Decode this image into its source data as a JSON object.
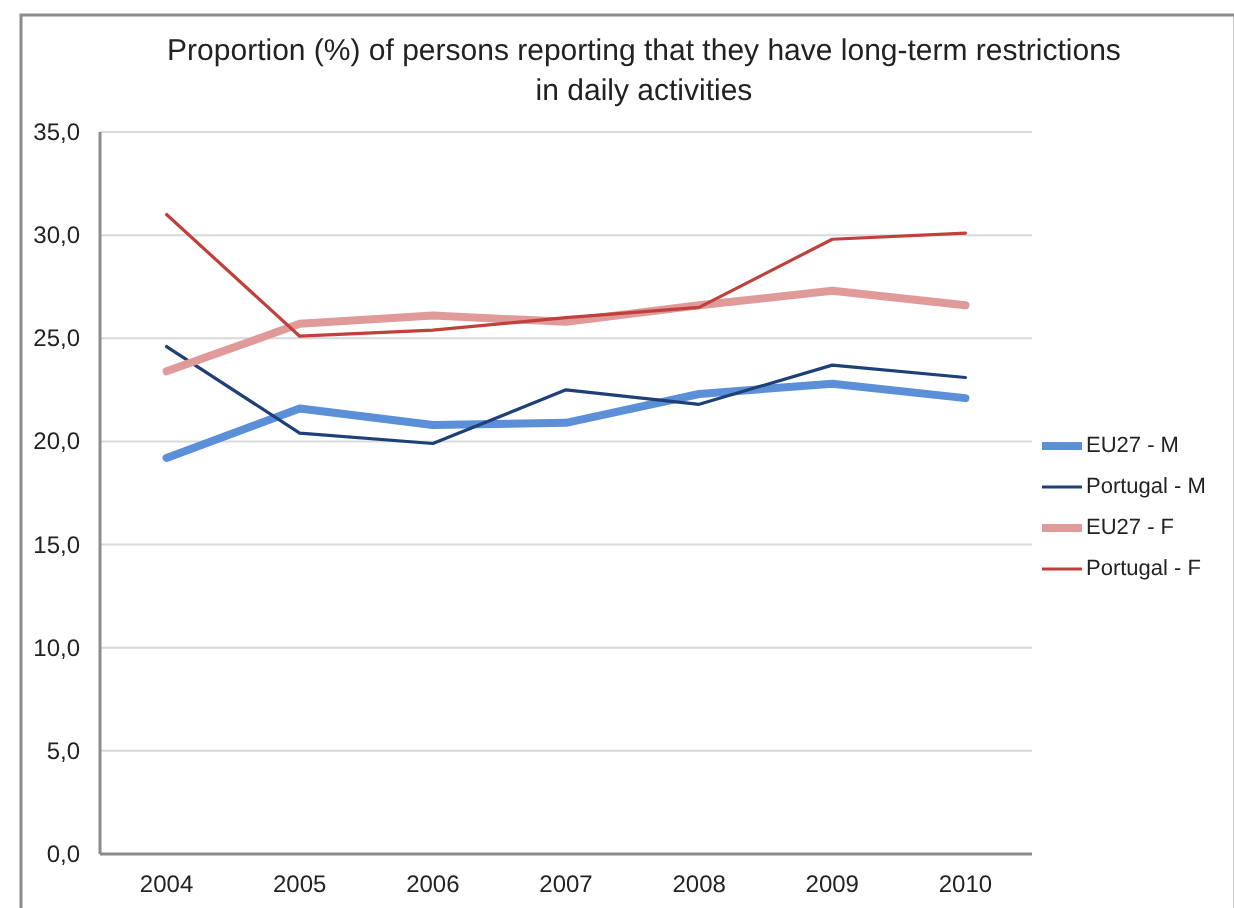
{
  "chart_data": {
    "type": "line",
    "title": "Proportion (%) of persons reporting that they have long-term restrictions\nin daily activities",
    "categories": [
      "2004",
      "2005",
      "2006",
      "2007",
      "2008",
      "2009",
      "2010"
    ],
    "series": [
      {
        "name": "EU27 - M",
        "color": "#5b8fd8",
        "values": [
          19.2,
          21.6,
          20.8,
          20.9,
          22.3,
          22.8,
          22.1
        ]
      },
      {
        "name": "Portugal - M",
        "color": "#1f3f78",
        "values": [
          24.6,
          20.4,
          19.9,
          22.5,
          21.8,
          23.7,
          23.1
        ]
      },
      {
        "name": "EU27 - F",
        "color": "#e09a9a",
        "values": [
          23.4,
          25.7,
          26.1,
          25.8,
          26.6,
          27.3,
          26.6
        ]
      },
      {
        "name": "Portugal - F",
        "color": "#c0403c",
        "values": [
          31.0,
          25.1,
          25.4,
          26.0,
          26.5,
          29.8,
          30.1
        ]
      }
    ],
    "ylim": [
      0,
      35
    ],
    "yticks": [
      {
        "value": 0,
        "label": "0,0"
      },
      {
        "value": 5,
        "label": "5,0"
      },
      {
        "value": 10,
        "label": "10,0"
      },
      {
        "value": 15,
        "label": "15,0"
      },
      {
        "value": 20,
        "label": "20,0"
      },
      {
        "value": 25,
        "label": "25,0"
      },
      {
        "value": 30,
        "label": "30,0"
      },
      {
        "value": 35,
        "label": "35,0"
      }
    ],
    "grid": "y",
    "legend": "right",
    "marker": "none",
    "line_style": "solid"
  }
}
